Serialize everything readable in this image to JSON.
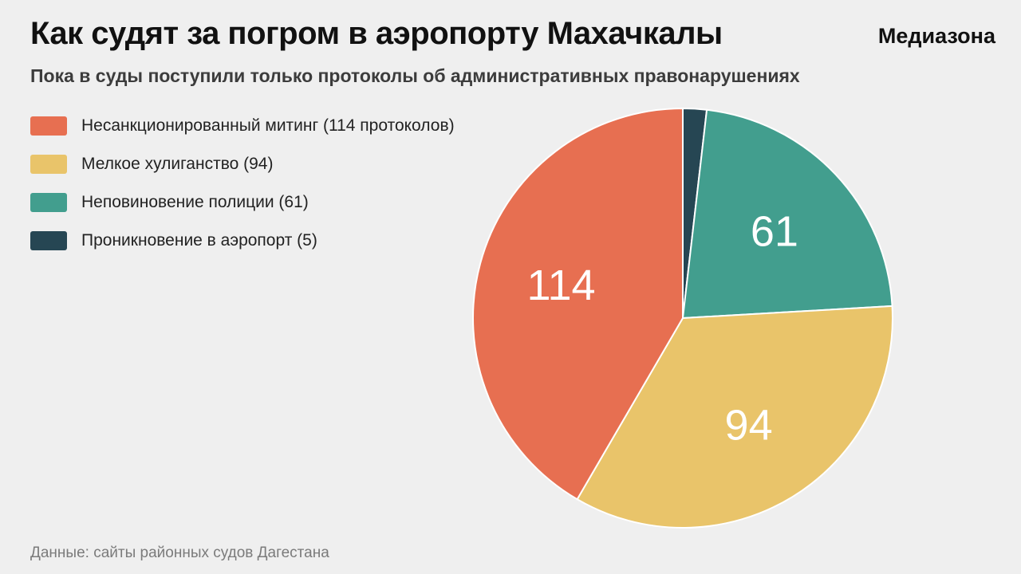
{
  "header": {
    "title": "Как судят за погром в аэропорту Махачкалы",
    "brand": "Медиазона",
    "subtitle": "Пока в суды поступили только протоколы об административных правонарушениях"
  },
  "legend": [
    {
      "label": "Несанкционированный митинг (114 протоколов)",
      "color": "#e76f51"
    },
    {
      "label": "Мелкое хулиганство (94)",
      "color": "#e9c46a"
    },
    {
      "label": "Неповиновение полиции (61)",
      "color": "#429e8e"
    },
    {
      "label": "Проникновение в аэропорт (5)",
      "color": "#264653"
    }
  ],
  "chart_data": {
    "type": "pie",
    "title": "Как судят за погром в аэропорту Махачкалы",
    "subtitle": "Пока в суды поступили только протоколы об административных правонарушениях",
    "slices": [
      {
        "label": "Проникновение в аэропорт",
        "value": 5,
        "color": "#264653",
        "data_label": ""
      },
      {
        "label": "Неповиновение полиции",
        "value": 61,
        "color": "#429e8e",
        "data_label": "61"
      },
      {
        "label": "Мелкое хулиганство",
        "value": 94,
        "color": "#e9c46a",
        "data_label": "94"
      },
      {
        "label": "Несанкционированный митинг",
        "value": 114,
        "color": "#e76f51",
        "data_label": "114"
      }
    ],
    "start": "top",
    "direction": "clockwise",
    "legend_position": "top-left"
  },
  "footer": {
    "source": "Данные: сайты районных судов Дагестана"
  }
}
